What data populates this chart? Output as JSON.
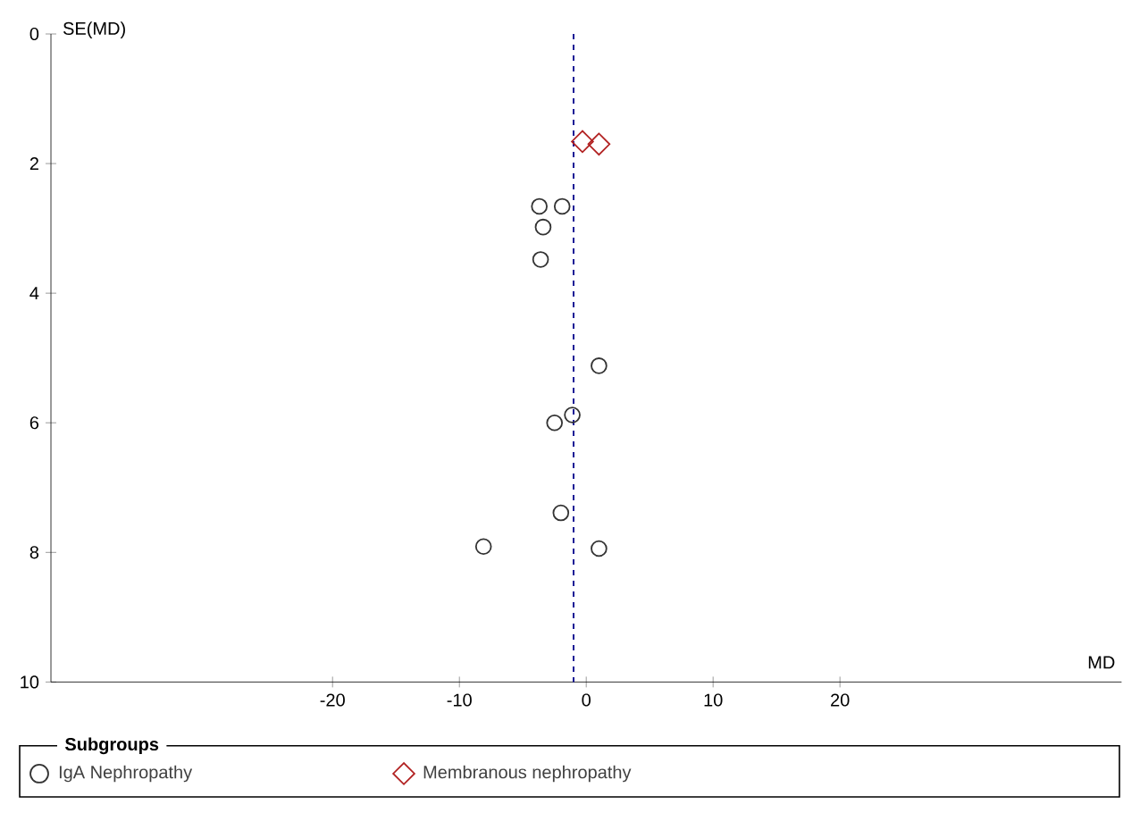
{
  "chart_data": {
    "type": "scatter",
    "xlabel": "MD",
    "ylabel": "SE(MD)",
    "legend_title": "Subgroups",
    "xlim": [
      -42.2,
      42.2
    ],
    "ylim": [
      10,
      0
    ],
    "xticks": [
      -20,
      -10,
      0,
      10,
      20
    ],
    "yticks": [
      0,
      2,
      4,
      6,
      8,
      10
    ],
    "grid": false,
    "legend": "bottom",
    "ref_lines": [
      {
        "axis": "x",
        "value": -1,
        "color": "#00008b",
        "line_style": "dashed"
      }
    ],
    "series": [
      {
        "name": "IgA Nephropathy",
        "color": "#333333",
        "marker": "circle",
        "x": [
          -3.7,
          -1.9,
          -3.4,
          -3.6,
          1.0,
          -1.1,
          -2.5,
          -2.0,
          -8.1,
          1.0
        ],
        "values": [
          2.66,
          2.66,
          2.98,
          3.48,
          5.12,
          5.88,
          6.0,
          7.39,
          7.91,
          7.94
        ]
      },
      {
        "name": "Membranous nephropathy",
        "color": "#b22222",
        "marker": "diamond",
        "x": [
          -0.3,
          1.0
        ],
        "values": [
          1.66,
          1.7
        ]
      }
    ]
  }
}
